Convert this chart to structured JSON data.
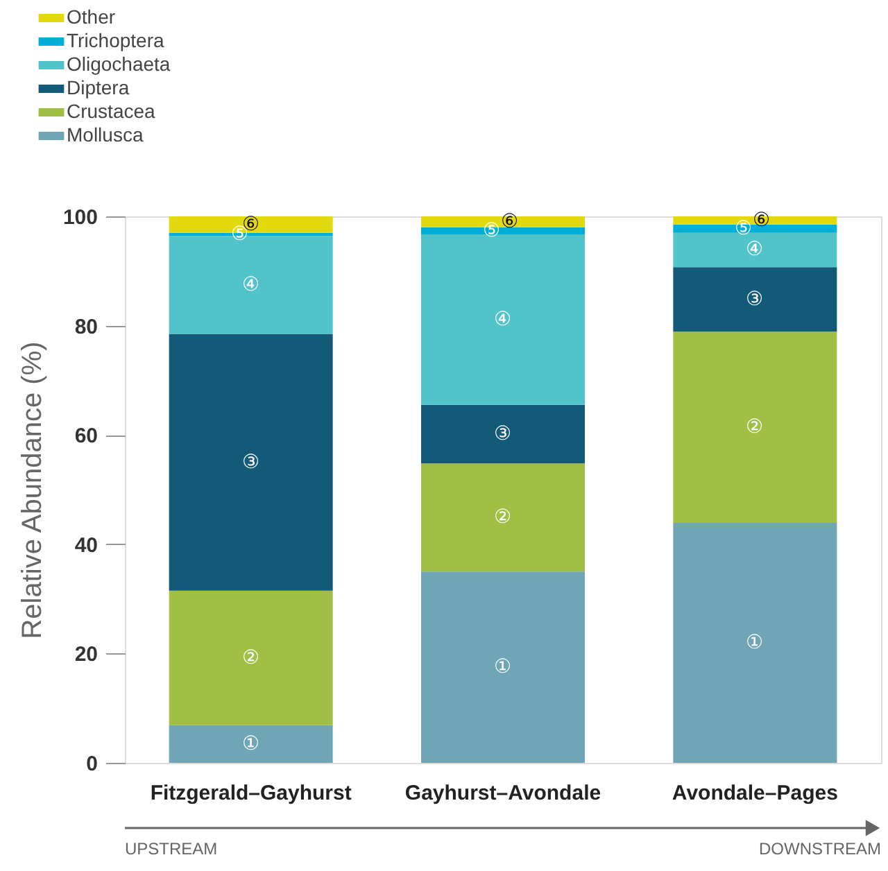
{
  "chart_data": {
    "type": "bar",
    "stacked": true,
    "ylabel": "Relative Abundance (%)",
    "categories": [
      "Fitzgerald–Gayhurst",
      "Gayhurst–Avondale",
      "Avondale–Pages"
    ],
    "series": [
      {
        "name": "Mollusca",
        "color": "#6fa5b5",
        "values": [
          6.9,
          35.0,
          43.9
        ],
        "value_labels": [
          "①",
          "①",
          "①"
        ]
      },
      {
        "name": "Crustacea",
        "color": "#a1bf45",
        "values": [
          24.6,
          19.8,
          35.0
        ],
        "value_labels": [
          "②",
          "②",
          "②"
        ]
      },
      {
        "name": "Diptera",
        "color": "#135a78",
        "values": [
          47.0,
          10.7,
          11.8
        ],
        "value_labels": [
          "③",
          "③",
          "③"
        ]
      },
      {
        "name": "Oligochaeta",
        "color": "#52c3c9",
        "values": [
          17.9,
          31.2,
          6.3
        ],
        "value_labels": [
          "④",
          "④",
          "④"
        ]
      },
      {
        "name": "Trichoptera",
        "color": "#00aed8",
        "values": [
          0.6,
          1.3,
          1.5
        ],
        "value_labels": [
          "⑤",
          "⑤",
          "⑤"
        ]
      },
      {
        "name": "Other",
        "color": "#e2d90f",
        "values": [
          3.0,
          2.0,
          1.5
        ],
        "value_labels": [
          "⑥",
          "⑥",
          "⑥"
        ]
      }
    ],
    "ylim": [
      0,
      100
    ],
    "yticks": [
      0,
      20,
      40,
      60,
      80,
      100
    ],
    "grid": false,
    "legend": "top left",
    "annotations": [
      "UPSTREAM",
      "DOWNSTREAM"
    ]
  }
}
